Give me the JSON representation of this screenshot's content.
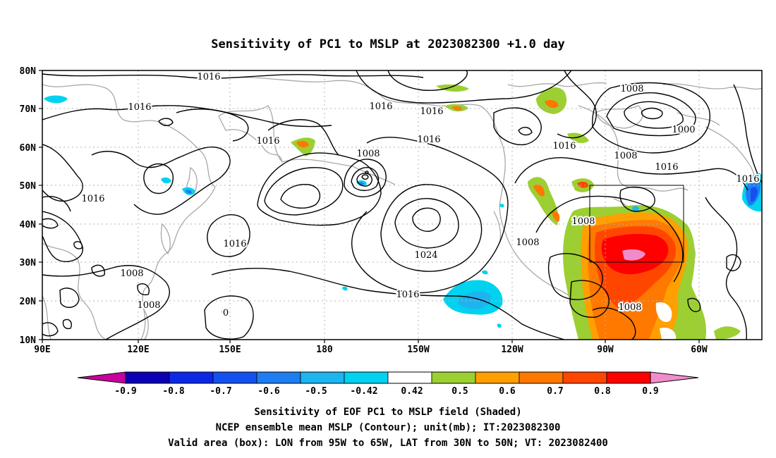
{
  "title": "Sensitivity of PC1 to MSLP at 2023082300 +1.0 day",
  "map": {
    "lat_labels": [
      "80N",
      "70N",
      "60N",
      "50N",
      "40N",
      "30N",
      "20N",
      "10N"
    ],
    "lon_labels": [
      "90E",
      "120E",
      "150E",
      "180",
      "150W",
      "120W",
      "90W",
      "60W"
    ],
    "extent": {
      "lon_west": "90E",
      "lon_east": "50W",
      "lat_south": "10N",
      "lat_north": "80N"
    },
    "grid": "dotted",
    "valid_box": {
      "lon_from": "95W",
      "lon_to": "65W",
      "lat_from": "30N",
      "lat_to": "50N"
    }
  },
  "contours": {
    "labels": [
      {
        "id": "c1",
        "text": "1016"
      },
      {
        "id": "c2",
        "text": "1016"
      },
      {
        "id": "c3",
        "text": "1016"
      },
      {
        "id": "c4",
        "text": "1016"
      },
      {
        "id": "c5",
        "text": "1016"
      },
      {
        "id": "c6",
        "text": "1016"
      },
      {
        "id": "c7",
        "text": "1016"
      },
      {
        "id": "c8",
        "text": "1016"
      },
      {
        "id": "c9",
        "text": "1008"
      },
      {
        "id": "c10",
        "text": "1016"
      },
      {
        "id": "c11",
        "text": "1008"
      },
      {
        "id": "c12",
        "text": "1000"
      },
      {
        "id": "c13",
        "text": "1016"
      },
      {
        "id": "c14",
        "text": "1008"
      },
      {
        "id": "c15",
        "text": "1016"
      },
      {
        "id": "c16",
        "text": "1008"
      },
      {
        "id": "c17",
        "text": "1008"
      },
      {
        "id": "c18",
        "text": "1024"
      },
      {
        "id": "c19",
        "text": "1016"
      },
      {
        "id": "c20",
        "text": "1008"
      },
      {
        "id": "c21",
        "text": "1008"
      },
      {
        "id": "c22",
        "text": "1008"
      },
      {
        "id": "c23",
        "text": "0"
      }
    ]
  },
  "colorbar": {
    "labels": [
      "-0.9",
      "-0.8",
      "-0.7",
      "-0.6",
      "-0.5",
      "-0.42",
      "0.42",
      "0.5",
      "0.6",
      "0.7",
      "0.8",
      "0.9"
    ],
    "colors": [
      "#c8009e",
      "#0a00b4",
      "#0c28e6",
      "#1450f0",
      "#1e7df0",
      "#1eb4f0",
      "#00d2f0",
      "#ffffff",
      "#9ccf32",
      "#ffa000",
      "#ff7800",
      "#ff4600",
      "#ff0000",
      "#f08ccc"
    ]
  },
  "captions": {
    "line1": "Sensitivity of EOF PC1 to MSLP field (Shaded)",
    "line2": "NCEP ensemble mean MSLP (Contour); unit(mb); IT:2023082300",
    "line3": "Valid area (box): LON from 95W to 65W, LAT from 30N to 50N; VT: 2023082400"
  }
}
